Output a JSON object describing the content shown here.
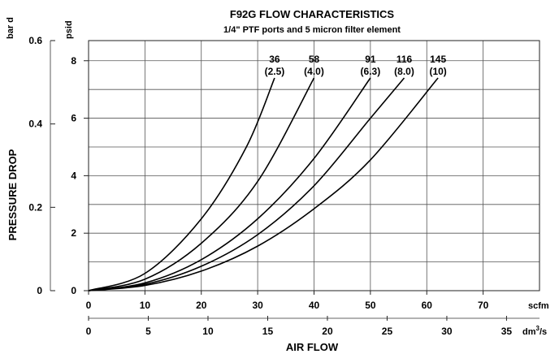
{
  "chart_data": {
    "type": "line",
    "title": "F92G FLOW CHARACTERISTICS",
    "subtitle": "1/4\" PTF ports and 5 micron filter element",
    "xlabel": "AIR FLOW",
    "ylabel": "PRESSURE DROP",
    "x_primary": {
      "unit": "scfm",
      "range": [
        0,
        80
      ],
      "ticks": [
        0,
        10,
        20,
        30,
        40,
        50,
        60,
        70
      ]
    },
    "x_secondary": {
      "unit": "dm",
      "unit_sup": "3",
      "unit_suffix": "/s",
      "range": [
        0,
        37.76
      ],
      "ticks": [
        0,
        5,
        10,
        15,
        20,
        25,
        30,
        35
      ]
    },
    "y_primary": {
      "unit": "psid",
      "range": [
        0,
        8.7
      ],
      "ticks": [
        0,
        2,
        4,
        6,
        8
      ]
    },
    "y_secondary": {
      "unit": "bar d",
      "range": [
        0,
        0.6
      ],
      "ticks": [
        0,
        0.2,
        0.4,
        0.6
      ]
    },
    "grid": true,
    "series": [
      {
        "name": "36",
        "sub": "(2.5)",
        "x": [
          0,
          10,
          20,
          28,
          33
        ],
        "y": [
          0,
          0.6,
          2.5,
          5.0,
          7.4
        ]
      },
      {
        "name": "58",
        "sub": "(4.0)",
        "x": [
          0,
          10,
          20,
          30,
          40
        ],
        "y": [
          0,
          0.4,
          1.65,
          3.8,
          7.4
        ]
      },
      {
        "name": "91",
        "sub": "(6.3)",
        "x": [
          0,
          10,
          20,
          30,
          40,
          50
        ],
        "y": [
          0,
          0.27,
          1.08,
          2.5,
          4.6,
          7.4
        ]
      },
      {
        "name": "116",
        "sub": "(8.0)",
        "x": [
          0,
          10,
          20,
          30,
          40,
          50,
          56
        ],
        "y": [
          0,
          0.22,
          0.85,
          1.95,
          3.65,
          6.0,
          7.4
        ]
      },
      {
        "name": "145",
        "sub": "(10)",
        "x": [
          0,
          10,
          20,
          30,
          40,
          50,
          62
        ],
        "y": [
          0,
          0.18,
          0.68,
          1.55,
          2.85,
          4.55,
          7.4
        ]
      }
    ]
  }
}
